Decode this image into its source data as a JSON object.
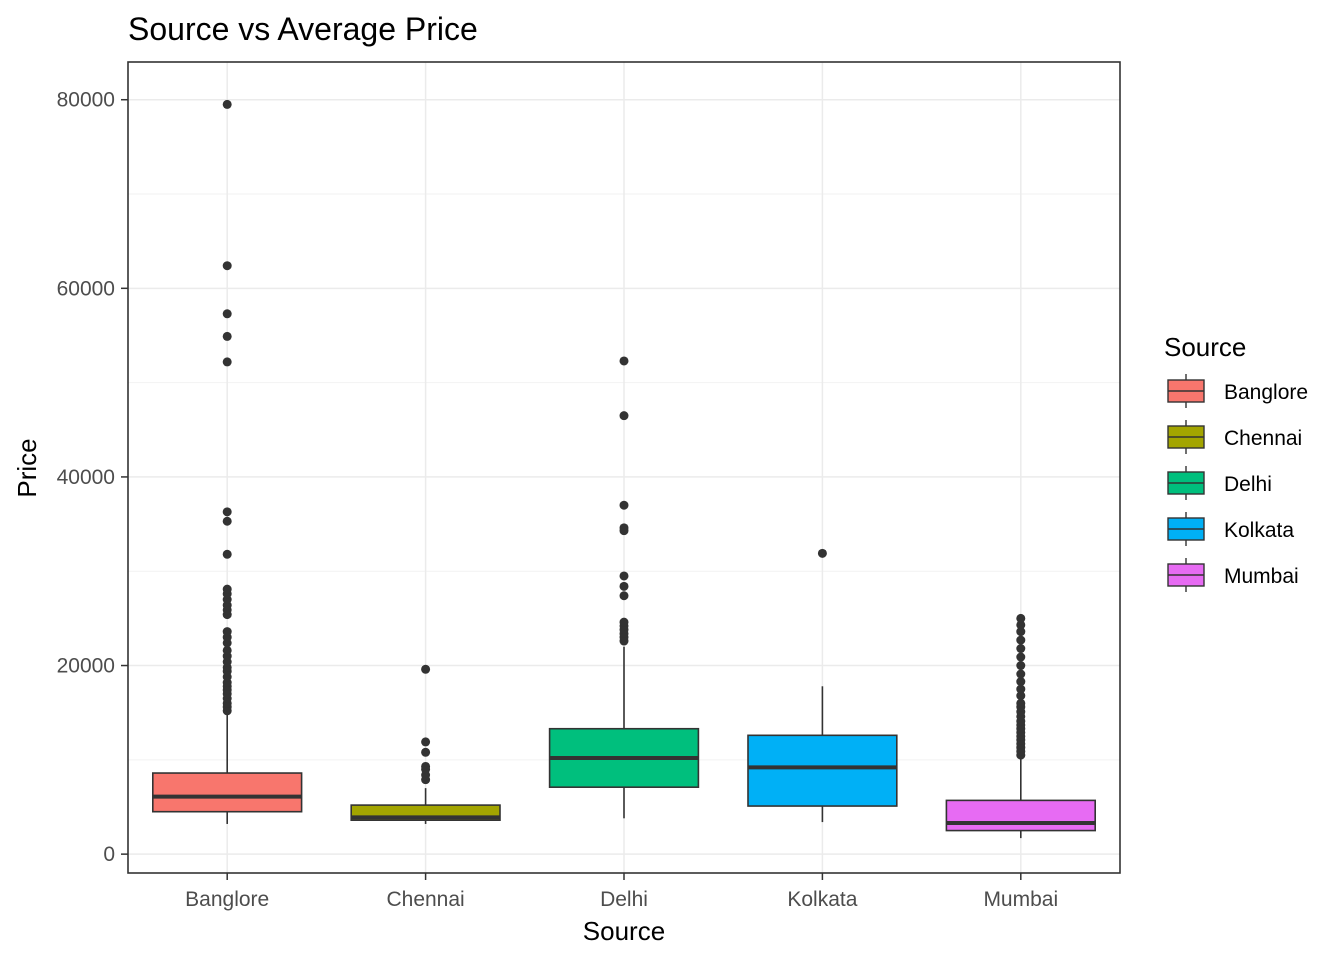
{
  "chart_data": {
    "type": "box",
    "title": "Source vs Average Price",
    "xlabel": "Source",
    "ylabel": "Price",
    "ylim": [
      -2000,
      84000
    ],
    "yticks": [
      0,
      20000,
      40000,
      60000,
      80000
    ],
    "grid": true,
    "legend": {
      "title": "Source",
      "position": "right"
    },
    "categories": [
      "Banglore",
      "Chennai",
      "Delhi",
      "Kolkata",
      "Mumbai"
    ],
    "series": [
      {
        "name": "Banglore",
        "color": "#F8766D",
        "min": 3200,
        "q1": 4500,
        "median": 6100,
        "q3": 8600,
        "max": 15000,
        "outliers": [
          15200,
          15600,
          16000,
          16500,
          17000,
          17400,
          17800,
          18200,
          18800,
          19400,
          19800,
          20400,
          21000,
          21600,
          22400,
          23000,
          23600,
          25400,
          25900,
          26400,
          27000,
          27600,
          28100,
          31800,
          35300,
          36300,
          52200,
          54900,
          57300,
          62400,
          79500
        ]
      },
      {
        "name": "Chennai",
        "color": "#A3A500",
        "min": 3200,
        "q1": 3600,
        "median": 3900,
        "q3": 5200,
        "max": 7000,
        "outliers": [
          7900,
          8400,
          9000,
          9300,
          10800,
          11900,
          19600
        ]
      },
      {
        "name": "Delhi",
        "color": "#00BF7D",
        "min": 3800,
        "q1": 7100,
        "median": 10200,
        "q3": 13300,
        "max": 22000,
        "outliers": [
          22600,
          23000,
          23400,
          23800,
          24200,
          24600,
          27400,
          28400,
          29500,
          34300,
          34600,
          37000,
          46500,
          52300
        ]
      },
      {
        "name": "Kolkata",
        "color": "#00B0F6",
        "min": 3400,
        "q1": 5100,
        "median": 9200,
        "q3": 12600,
        "max": 17800,
        "outliers": [
          31900
        ]
      },
      {
        "name": "Mumbai",
        "color": "#E76BF3",
        "min": 1700,
        "q1": 2500,
        "median": 3300,
        "q3": 5700,
        "max": 10200,
        "outliers": [
          10500,
          10900,
          11300,
          11700,
          12100,
          12500,
          12900,
          13300,
          13700,
          14100,
          14600,
          15100,
          15600,
          16000,
          16800,
          17500,
          18300,
          19100,
          20000,
          20900,
          21800,
          22700,
          23600,
          24300,
          25000
        ]
      }
    ]
  }
}
